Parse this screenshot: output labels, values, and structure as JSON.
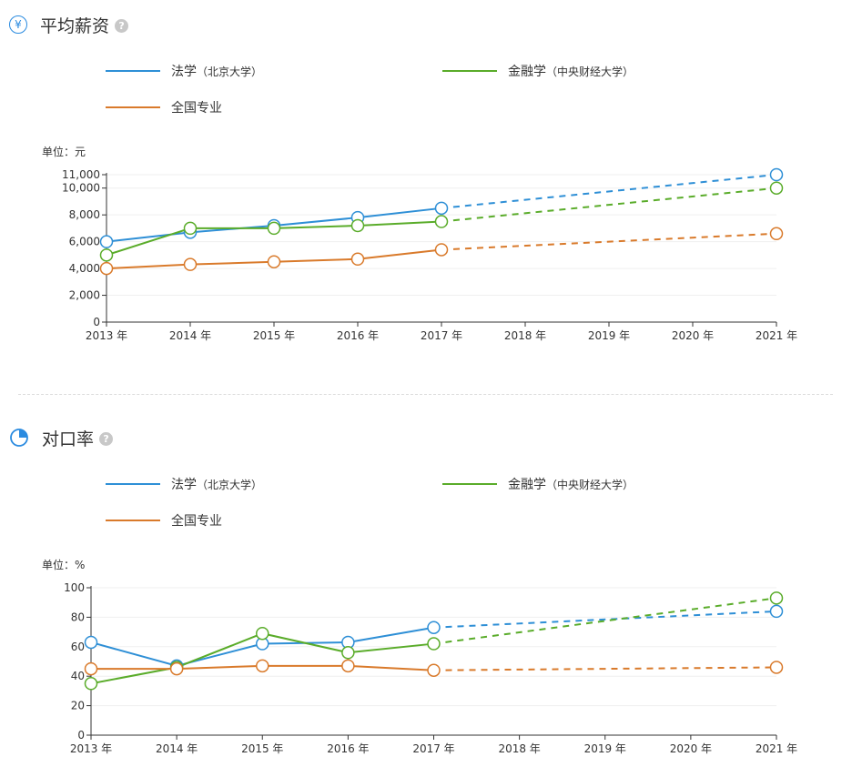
{
  "colors": {
    "law": "#2e8fd6",
    "finance": "#5aac2a",
    "national": "#d97a2b",
    "accent": "#2a8be0"
  },
  "sections": [
    {
      "title": "平均薪资",
      "icon": "yen-circle-icon",
      "icon_glyph": "¥",
      "help": "?",
      "unit": "单位：元",
      "legend": [
        {
          "label": "法学",
          "sub": "（北京大学）"
        },
        {
          "label": "金融学",
          "sub": "（中央财经大学）"
        },
        {
          "label": "全国专业",
          "sub": ""
        }
      ]
    },
    {
      "title": "对口率",
      "icon": "pie-chart-icon",
      "icon_glyph": "",
      "help": "?",
      "unit": "单位：%",
      "legend": [
        {
          "label": "法学",
          "sub": "（北京大学）"
        },
        {
          "label": "金融学",
          "sub": "（中央财经大学）"
        },
        {
          "label": "全国专业",
          "sub": ""
        }
      ]
    }
  ],
  "chart_data": [
    {
      "type": "line",
      "title": "平均薪资",
      "ylabel": "单位：元",
      "categories": [
        "2013 年",
        "2014 年",
        "2015 年",
        "2016 年",
        "2017 年",
        "2018 年",
        "2019 年",
        "2020 年",
        "2021 年"
      ],
      "yticks": [
        0,
        2000,
        4000,
        6000,
        8000,
        10000,
        11000
      ],
      "ytick_labels": [
        "0",
        "2,000",
        "4,000",
        "6,000",
        "8,000",
        "10,000",
        "11,000"
      ],
      "ylim": [
        0,
        11000
      ],
      "series": [
        {
          "name": "法学（北京大学）",
          "key": "law",
          "actual": [
            6000,
            6700,
            7200,
            7800,
            8500
          ],
          "forecast_end": 11000
        },
        {
          "name": "金融学（中央财经大学）",
          "key": "finance",
          "actual": [
            5000,
            7000,
            7000,
            7200,
            7500
          ],
          "forecast_end": 10000
        },
        {
          "name": "全国专业",
          "key": "national",
          "actual": [
            4000,
            4300,
            4500,
            4700,
            5400
          ],
          "forecast_end": 6600
        }
      ]
    },
    {
      "type": "line",
      "title": "对口率",
      "ylabel": "单位：%",
      "categories": [
        "2013 年",
        "2014 年",
        "2015 年",
        "2016 年",
        "2017 年",
        "2018 年",
        "2019 年",
        "2020 年",
        "2021 年"
      ],
      "yticks": [
        0,
        20,
        40,
        60,
        80,
        100
      ],
      "ytick_labels": [
        "0",
        "20",
        "40",
        "60",
        "80",
        "100"
      ],
      "ylim": [
        0,
        100
      ],
      "series": [
        {
          "name": "法学（北京大学）",
          "key": "law",
          "actual": [
            63,
            47,
            62,
            63,
            73
          ],
          "forecast_end": 84
        },
        {
          "name": "金融学（中央财经大学）",
          "key": "finance",
          "actual": [
            35,
            46,
            69,
            56,
            62
          ],
          "forecast_end": 93
        },
        {
          "name": "全国专业",
          "key": "national",
          "actual": [
            45,
            45,
            47,
            47,
            44
          ],
          "forecast_end": 46
        }
      ]
    }
  ]
}
